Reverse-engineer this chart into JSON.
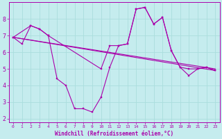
{
  "xlabel": "Windchill (Refroidissement éolien,°C)",
  "xlim": [
    -0.5,
    23.5
  ],
  "ylim": [
    1.8,
    9.0
  ],
  "yticks": [
    2,
    3,
    4,
    5,
    6,
    7,
    8
  ],
  "xticks": [
    0,
    1,
    2,
    3,
    4,
    5,
    6,
    7,
    8,
    9,
    10,
    11,
    12,
    13,
    14,
    15,
    16,
    17,
    18,
    19,
    20,
    21,
    22,
    23
  ],
  "bg_color": "#c5ecee",
  "grid_color": "#aadddd",
  "line_color": "#aa00aa",
  "series": [
    {
      "x": [
        0,
        1,
        2,
        3,
        4,
        5,
        6,
        7,
        8,
        9,
        10,
        11,
        12,
        13,
        14,
        15,
        16,
        17,
        18,
        19,
        20,
        21,
        22,
        23
      ],
      "y": [
        6.9,
        6.5,
        7.6,
        7.4,
        7.0,
        4.4,
        4.0,
        2.6,
        2.6,
        2.4,
        3.3,
        5.1,
        6.4,
        6.5,
        8.6,
        8.7,
        7.7,
        8.1,
        6.1,
        5.1,
        4.6,
        5.0,
        5.1,
        4.9
      ]
    },
    {
      "x": [
        0,
        2,
        3,
        4,
        10,
        11,
        12,
        13,
        14,
        15,
        16,
        17,
        18,
        19,
        20,
        21,
        22,
        23
      ],
      "y": [
        6.9,
        7.6,
        7.4,
        7.0,
        5.0,
        6.4,
        6.4,
        6.5,
        8.6,
        8.7,
        7.7,
        8.1,
        6.1,
        5.1,
        5.0,
        5.0,
        5.1,
        4.9
      ]
    },
    {
      "x": [
        0,
        23
      ],
      "y": [
        6.9,
        5.0
      ]
    },
    {
      "x": [
        0,
        23
      ],
      "y": [
        6.9,
        4.9
      ]
    }
  ]
}
